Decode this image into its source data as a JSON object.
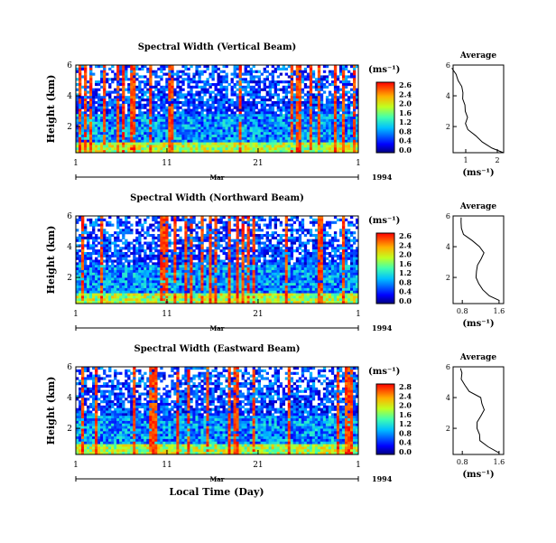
{
  "figure": {
    "xlabel": "Local Time (Day)",
    "month": "Mar",
    "year": "1994",
    "cbar_unit": "(ms⁻¹)",
    "avg_xlabel": "(ms⁻¹)",
    "avg_title": "Average"
  },
  "chart_data": [
    {
      "type": "heatmap",
      "title": "Spectral Width (Vertical Beam)",
      "ylabel": "Height (km)",
      "x_ticks": [
        "1",
        "11",
        "21",
        "1"
      ],
      "y_ticks": [
        "6",
        "4",
        "2"
      ],
      "colorbar_ticks": [
        "2.6",
        "2.4",
        "2.0",
        "1.6",
        "1.2",
        "0.8",
        "0.4",
        "0.0"
      ],
      "ylim": [
        0.3,
        6
      ],
      "average_profile": {
        "title": "Average",
        "x_ticks": [
          "1",
          "2"
        ],
        "y_ticks": [
          "6",
          "4",
          "2"
        ],
        "xlim": [
          0.6,
          2.2
        ],
        "ylim": [
          0.3,
          6
        ],
        "heights": [
          0.3,
          0.6,
          1.0,
          1.4,
          1.8,
          2.2,
          2.6,
          3.0,
          3.4,
          3.8,
          4.2,
          4.6,
          5.0,
          5.4,
          5.8
        ],
        "values": [
          2.2,
          1.8,
          1.5,
          1.3,
          1.1,
          1.0,
          1.05,
          0.95,
          1.0,
          0.9,
          0.95,
          0.85,
          0.75,
          0.7,
          0.6
        ]
      }
    },
    {
      "type": "heatmap",
      "title": "Spectral Width (Northward Beam)",
      "ylabel": "Height (km)",
      "x_ticks": [
        "1",
        "11",
        "21",
        "1"
      ],
      "y_ticks": [
        "6",
        "4",
        "2"
      ],
      "colorbar_ticks": [
        "2.6",
        "2.4",
        "2.0",
        "1.6",
        "1.2",
        "0.8",
        "0.4",
        "0.0"
      ],
      "ylim": [
        0.3,
        6
      ],
      "average_profile": {
        "title": "Average",
        "x_ticks": [
          "0.8",
          "1.6"
        ],
        "y_ticks": [
          "6",
          "4",
          "2"
        ],
        "xlim": [
          0.6,
          1.7
        ],
        "ylim": [
          0.3,
          6
        ],
        "heights": [
          0.5,
          0.8,
          1.2,
          1.6,
          2.0,
          2.4,
          2.8,
          3.2,
          3.6,
          4.0,
          4.4,
          4.8,
          5.2,
          5.6,
          5.9
        ],
        "values": [
          1.6,
          1.4,
          1.25,
          1.15,
          1.1,
          1.1,
          1.15,
          1.2,
          1.25,
          1.2,
          1.0,
          0.85,
          0.8,
          0.78,
          0.75
        ]
      }
    },
    {
      "type": "heatmap",
      "title": "Spectral Width (Eastward Beam)",
      "ylabel": "Height (km)",
      "x_ticks": [
        "1",
        "11",
        "21",
        "1"
      ],
      "y_ticks": [
        "6",
        "4",
        "2"
      ],
      "colorbar_ticks": [
        "2.8",
        "2.4",
        "2.0",
        "1.6",
        "1.2",
        "0.8",
        "0.4",
        "0.0"
      ],
      "ylim": [
        0.3,
        6
      ],
      "average_profile": {
        "title": "Average",
        "x_ticks": [
          "0.8",
          "1.6"
        ],
        "y_ticks": [
          "6",
          "4",
          "2"
        ],
        "xlim": [
          0.6,
          1.7
        ],
        "ylim": [
          0.3,
          6
        ],
        "heights": [
          0.4,
          0.8,
          1.2,
          1.6,
          2.0,
          2.4,
          2.8,
          3.2,
          3.6,
          4.0,
          4.4,
          4.8,
          5.2,
          5.6,
          5.9
        ],
        "values": [
          1.6,
          1.35,
          1.2,
          1.15,
          1.1,
          1.15,
          1.2,
          1.25,
          1.25,
          1.2,
          0.95,
          0.85,
          0.8,
          0.78,
          0.75
        ]
      }
    }
  ]
}
